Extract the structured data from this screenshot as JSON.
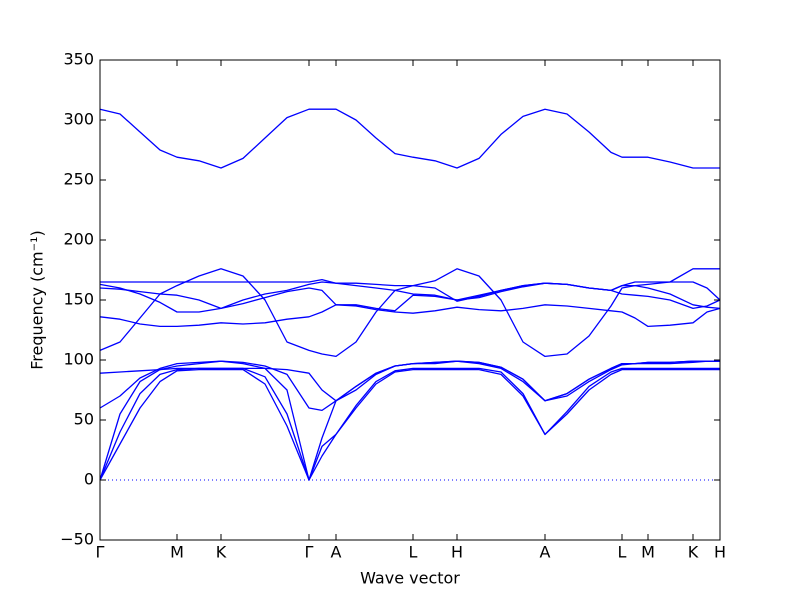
{
  "chart_data": {
    "type": "line",
    "xlabel": "Wave vector",
    "ylabel": "Frequency (cm⁻¹)",
    "color": "#0000ff",
    "hline": 0,
    "xlim": [
      0,
      620
    ],
    "ylim": [
      -50,
      350
    ],
    "yticks": [
      {
        "value": -50,
        "label": "−50"
      },
      0,
      50,
      100,
      150,
      200,
      250,
      300,
      350
    ],
    "xticks": [
      {
        "value": 0,
        "label": "Γ"
      },
      {
        "value": 77,
        "label": "M"
      },
      {
        "value": 121,
        "label": "K"
      },
      {
        "value": 209,
        "label": "Γ"
      },
      {
        "value": 236,
        "label": "A"
      },
      {
        "value": 313,
        "label": "L"
      },
      {
        "value": 357,
        "label": "H"
      },
      {
        "value": 445,
        "label": "A"
      },
      {
        "value": 522,
        "label": "L"
      },
      {
        "value": 548,
        "label": "M"
      },
      {
        "value": 593,
        "label": "K"
      },
      {
        "value": 620,
        "label": "H"
      }
    ],
    "x": [
      0,
      20,
      40,
      60,
      77,
      99,
      121,
      143,
      165,
      187,
      209,
      222,
      236,
      256,
      276,
      295,
      313,
      335,
      357,
      379,
      401,
      423,
      445,
      467,
      489,
      511,
      522,
      535,
      548,
      570,
      593,
      607,
      620
    ],
    "series": [
      {
        "values": [
          0,
          30,
          60,
          82,
          91,
          92,
          92,
          92,
          80,
          45,
          0,
          20,
          38,
          60,
          80,
          90,
          92,
          92,
          92,
          92,
          88,
          70,
          38,
          55,
          75,
          88,
          92,
          92,
          92,
          92,
          92,
          92,
          92
        ]
      },
      {
        "values": [
          0,
          40,
          72,
          88,
          92,
          93,
          93,
          93,
          86,
          55,
          0,
          28,
          38,
          62,
          82,
          91,
          93,
          93,
          93,
          93,
          90,
          72,
          38,
          57,
          78,
          90,
          93,
          93,
          93,
          93,
          93,
          93,
          93
        ]
      },
      {
        "values": [
          0,
          55,
          82,
          92,
          95,
          97,
          99,
          97,
          93,
          75,
          0,
          35,
          66,
          75,
          88,
          95,
          97,
          97,
          99,
          97,
          93,
          82,
          66,
          70,
          82,
          92,
          96,
          97,
          97,
          97,
          98,
          99,
          99
        ]
      },
      {
        "values": [
          60,
          70,
          85,
          93,
          97,
          98,
          99,
          98,
          95,
          88,
          60,
          58,
          66,
          78,
          89,
          95,
          97,
          98,
          99,
          98,
          94,
          84,
          66,
          72,
          84,
          93,
          97,
          97,
          98,
          98,
          99,
          99,
          99
        ]
      },
      {
        "values": [
          89,
          90,
          91,
          92,
          93,
          93,
          93,
          93,
          93,
          92,
          89,
          75,
          66,
          78,
          89,
          95,
          97,
          98,
          99,
          98,
          94,
          84,
          66,
          72,
          84,
          93,
          97,
          97,
          98,
          98,
          99,
          99,
          99
        ]
      },
      {
        "values": [
          108,
          115,
          135,
          155,
          162,
          170,
          176,
          170,
          150,
          115,
          108,
          105,
          103,
          115,
          140,
          158,
          162,
          166,
          176,
          170,
          150,
          115,
          103,
          105,
          120,
          145,
          160,
          162,
          163,
          165,
          176,
          176,
          176
        ]
      },
      {
        "values": [
          136,
          134,
          130,
          128,
          128,
          129,
          131,
          130,
          131,
          134,
          136,
          140,
          146,
          145,
          142,
          140,
          139,
          141,
          144,
          142,
          141,
          143,
          146,
          145,
          143,
          141,
          140,
          135,
          128,
          129,
          131,
          140,
          143
        ]
      },
      {
        "values": [
          160,
          159,
          157,
          155,
          154,
          150,
          143,
          147,
          152,
          157,
          160,
          158,
          146,
          146,
          143,
          141,
          154,
          153,
          150,
          152,
          157,
          161,
          164,
          163,
          160,
          158,
          155,
          154,
          153,
          150,
          143,
          145,
          150
        ]
      },
      {
        "values": [
          163,
          160,
          155,
          148,
          140,
          140,
          143,
          150,
          155,
          158,
          163,
          165,
          164,
          162,
          160,
          158,
          155,
          154,
          150,
          154,
          158,
          162,
          164,
          163,
          160,
          158,
          162,
          162,
          160,
          155,
          146,
          144,
          143
        ]
      },
      {
        "values": [
          165,
          165,
          165,
          165,
          165,
          165,
          165,
          165,
          165,
          165,
          165,
          167,
          164,
          164,
          163,
          162,
          162,
          160,
          149,
          153,
          158,
          162,
          164,
          163,
          160,
          158,
          162,
          165,
          165,
          165,
          165,
          160,
          150
        ]
      },
      {
        "values": [
          309,
          305,
          290,
          275,
          269,
          266,
          260,
          268,
          285,
          302,
          309,
          309,
          309,
          300,
          285,
          272,
          269,
          266,
          260,
          268,
          288,
          303,
          309,
          305,
          290,
          273,
          269,
          269,
          269,
          265,
          260,
          260,
          260
        ]
      }
    ]
  }
}
